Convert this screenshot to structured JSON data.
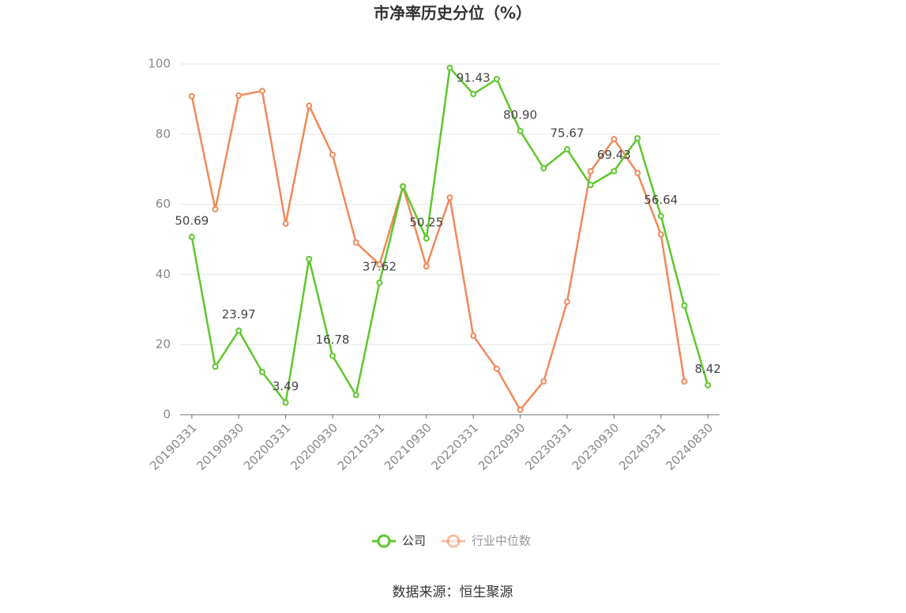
{
  "chart_data": {
    "type": "line",
    "title": "市净率历史分位（%）",
    "categories": [
      "20190331",
      null,
      "20190930",
      null,
      "20200331",
      null,
      "20200930",
      null,
      "20210331",
      null,
      "20210930",
      null,
      "20220331",
      null,
      "20220930",
      null,
      "20230331",
      null,
      "20230930",
      null,
      "20240331",
      null,
      "20240830"
    ],
    "series": [
      {
        "name": "公司",
        "color": "#5ec72c",
        "values": [
          50.69,
          13.7,
          23.97,
          12.2,
          3.49,
          44.4,
          16.78,
          5.6,
          37.62,
          65.1,
          50.25,
          98.9,
          91.43,
          95.7,
          80.9,
          70.3,
          75.67,
          65.5,
          69.43,
          78.8,
          56.64,
          31.1,
          8.42
        ],
        "value_labels": [
          "50.69",
          null,
          "23.97",
          null,
          "3.49",
          null,
          "16.78",
          null,
          "37.62",
          null,
          "50.25",
          null,
          "91.43",
          null,
          "80.90",
          null,
          "75.67",
          null,
          "69.43",
          null,
          "56.64",
          null,
          "8.42"
        ]
      },
      {
        "name": "行业中位数",
        "color": "#f0895a",
        "values": [
          90.8,
          58.6,
          91.0,
          92.3,
          54.5,
          88.1,
          74.1,
          49.1,
          42.8,
          65.1,
          42.3,
          61.9,
          22.5,
          13.1,
          1.4,
          9.5,
          32.2,
          69.4,
          78.6,
          68.9,
          51.4,
          9.5,
          null
        ]
      }
    ],
    "ylim": [
      0,
      100
    ],
    "yticks": [
      0,
      20,
      40,
      60,
      80,
      100
    ],
    "grid": true,
    "source": "数据来源：恒生聚源"
  }
}
